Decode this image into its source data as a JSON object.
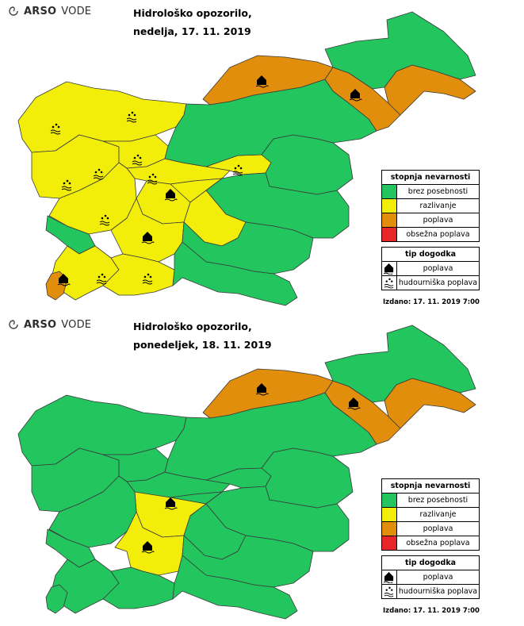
{
  "brand": {
    "name": "ARSO",
    "sub": "VODE",
    "logo_icon": "arso-swirl-icon"
  },
  "colors": {
    "green": "#22c55e",
    "yellow": "#f2ee0a",
    "orange": "#e08e0b",
    "red": "#e8262a"
  },
  "legend": {
    "severity_title": "stopnja nevarnosti",
    "severity": [
      {
        "label": "brez posebnosti",
        "color": "#22c55e"
      },
      {
        "label": "razlivanje",
        "color": "#f2ee0a"
      },
      {
        "label": "poplava",
        "color": "#e08e0b"
      },
      {
        "label": "obsežna poplava",
        "color": "#e8262a"
      }
    ],
    "type_title": "tip dogodka",
    "types": [
      {
        "label": "poplava",
        "icon": "flood-house-icon"
      },
      {
        "label": "hudourniška poplava",
        "icon": "flash-flood-icon"
      }
    ]
  },
  "maps": [
    {
      "title_line1": "Hidrološko opozorilo,",
      "title_line2": "nedelja, 17. 11. 2019",
      "issued": "Izdano: 17. 11. 2019 7:00",
      "regions": {
        "mura": "orange",
        "drava": "orange",
        "pomurje": "green",
        "savinja": "green",
        "sotla": "orange",
        "upper_sava": "yellow",
        "upper_soca": "yellow",
        "karavanke": "yellow",
        "idrija": "yellow",
        "ljubljana": "yellow",
        "selska": "yellow",
        "vipava": "yellow",
        "notranjska": "yellow",
        "karst": "green",
        "coast": "yellow",
        "istria": "yellow",
        "lower_sava": "yellow",
        "central": "green",
        "east_central": "green",
        "kolpa": "green",
        "dolenjska": "green",
        "koper_bay": "orange",
        "snk": "yellow"
      }
    },
    {
      "title_line1": "Hidrološko opozorilo,",
      "title_line2": "ponedeljek, 18. 11. 2019",
      "issued": "Izdano: 17. 11. 2019 7:00",
      "regions": {
        "mura": "orange",
        "drava": "orange",
        "pomurje": "green",
        "savinja": "green",
        "sotla": "orange",
        "upper_sava": "green",
        "upper_soca": "green",
        "karavanke": "green",
        "idrija": "green",
        "ljubljana": "yellow",
        "selska": "green",
        "vipava": "green",
        "notranjska": "yellow",
        "karst": "green",
        "coast": "green",
        "istria": "green",
        "lower_sava": "green",
        "central": "green",
        "east_central": "green",
        "kolpa": "green",
        "dolenjska": "green",
        "koper_bay": "green",
        "snk": "green"
      }
    }
  ]
}
